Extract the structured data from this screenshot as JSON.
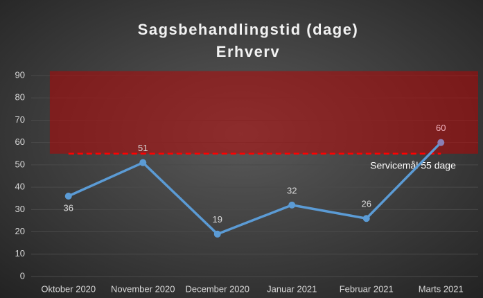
{
  "chart_data": {
    "type": "line",
    "title": "Sagsbehandlingstid (dage)",
    "subtitle": "Erhverv",
    "categories": [
      "Oktober 2020",
      "November 2020",
      "December 2020",
      "Januar 2021",
      "Februar 2021",
      "Marts 2021"
    ],
    "series": [
      {
        "name": "Sagsbehandlingstid",
        "color": "#5b9bd5",
        "values": [
          36,
          51,
          19,
          32,
          26,
          60
        ]
      }
    ],
    "ylim": [
      0,
      90
    ],
    "yticks": [
      0,
      10,
      20,
      30,
      40,
      50,
      60,
      70,
      80,
      90
    ],
    "grid": true,
    "target": {
      "value": 55,
      "label": "Servicemål 55 dage",
      "color": "#ff0000"
    },
    "target_band": {
      "range": [
        55,
        92
      ],
      "color": "#c00000"
    }
  }
}
